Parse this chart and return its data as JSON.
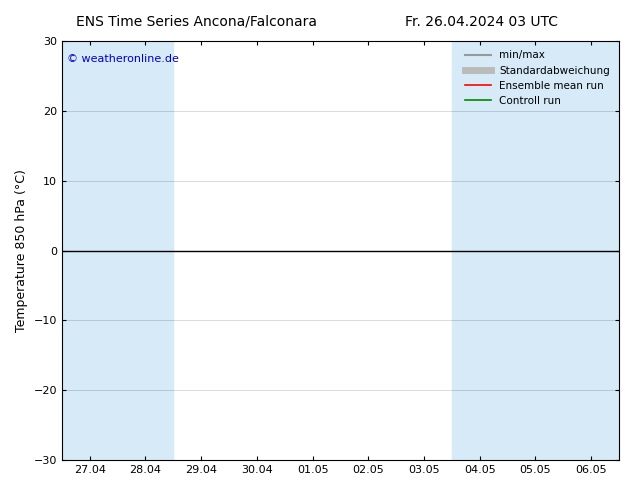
{
  "title_left": "ENS Time Series Ancona/Falconara",
  "title_right": "Fr. 26.04.2024 03 UTC",
  "ylabel": "Temperature 850 hPa (°C)",
  "ylim": [
    -30,
    30
  ],
  "yticks": [
    -30,
    -20,
    -10,
    0,
    10,
    20,
    30
  ],
  "xtick_labels": [
    "27.04",
    "28.04",
    "29.04",
    "30.04",
    "01.05",
    "02.05",
    "03.05",
    "04.05",
    "05.05",
    "06.05"
  ],
  "background_color": "#ffffff",
  "shaded_color": "#d6eaf8",
  "shaded_bands_days": [
    0,
    1,
    7,
    8,
    9
  ],
  "zero_line_color": "#000000",
  "legend_entries": [
    {
      "label": "min/max",
      "color": "#999999",
      "lw": 1.5
    },
    {
      "label": "Standardabweichung",
      "color": "#bbbbbb",
      "lw": 5
    },
    {
      "label": "Ensemble mean run",
      "color": "#ff0000",
      "lw": 1.2
    },
    {
      "label": "Controll run",
      "color": "#008800",
      "lw": 1.2
    }
  ],
  "copyright_text": "© weatheronline.de",
  "copyright_color": "#0000cc",
  "title_fontsize": 10,
  "tick_fontsize": 8,
  "ylabel_fontsize": 9,
  "legend_fontsize": 7.5
}
